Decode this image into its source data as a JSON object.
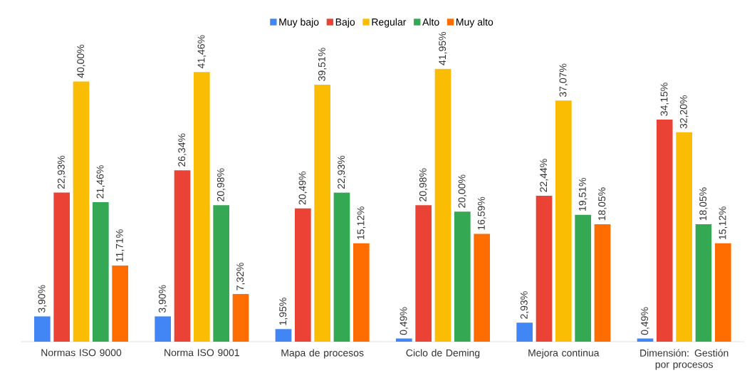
{
  "chart_data": {
    "type": "bar",
    "categories": [
      "Normas ISO 9000",
      "Norma ISO 9001",
      "Mapa de procesos",
      "Ciclo de Deming",
      "Mejora continua",
      "Dimensión: Gestión por procesos"
    ],
    "series": [
      {
        "name": "Muy bajo",
        "color": "#4285f4",
        "values": [
          3.9,
          3.9,
          1.95,
          0.49,
          2.93,
          0.49
        ],
        "value_labels": [
          "3,90%",
          "3,90%",
          "1,95%",
          "0,49%",
          "2,93%",
          "0,49%"
        ]
      },
      {
        "name": "Bajo",
        "color": "#ea4335",
        "values": [
          22.93,
          26.34,
          20.49,
          20.98,
          22.44,
          34.15
        ],
        "value_labels": [
          "22,93%",
          "26,34%",
          "20,49%",
          "20,98%",
          "22,44%",
          "34,15%"
        ]
      },
      {
        "name": "Regular",
        "color": "#fbbc04",
        "values": [
          40.0,
          41.46,
          39.51,
          41.95,
          37.07,
          32.2
        ],
        "value_labels": [
          "40,00%",
          "41,46%",
          "39,51%",
          "41,95%",
          "37,07%",
          "32,20%"
        ]
      },
      {
        "name": "Alto",
        "color": "#34a853",
        "values": [
          21.46,
          20.98,
          22.93,
          20.0,
          19.51,
          18.05
        ],
        "value_labels": [
          "21,46%",
          "20,98%",
          "22,93%",
          "20,00%",
          "19,51%",
          "18,05%"
        ]
      },
      {
        "name": "Muy alto",
        "color": "#ff6d01",
        "values": [
          11.71,
          7.32,
          15.12,
          16.59,
          18.05,
          15.12
        ],
        "value_labels": [
          "11,71%",
          "7,32%",
          "15,12%",
          "16,59%",
          "18,05%",
          "15,12%"
        ]
      }
    ],
    "legend": "top"
  }
}
